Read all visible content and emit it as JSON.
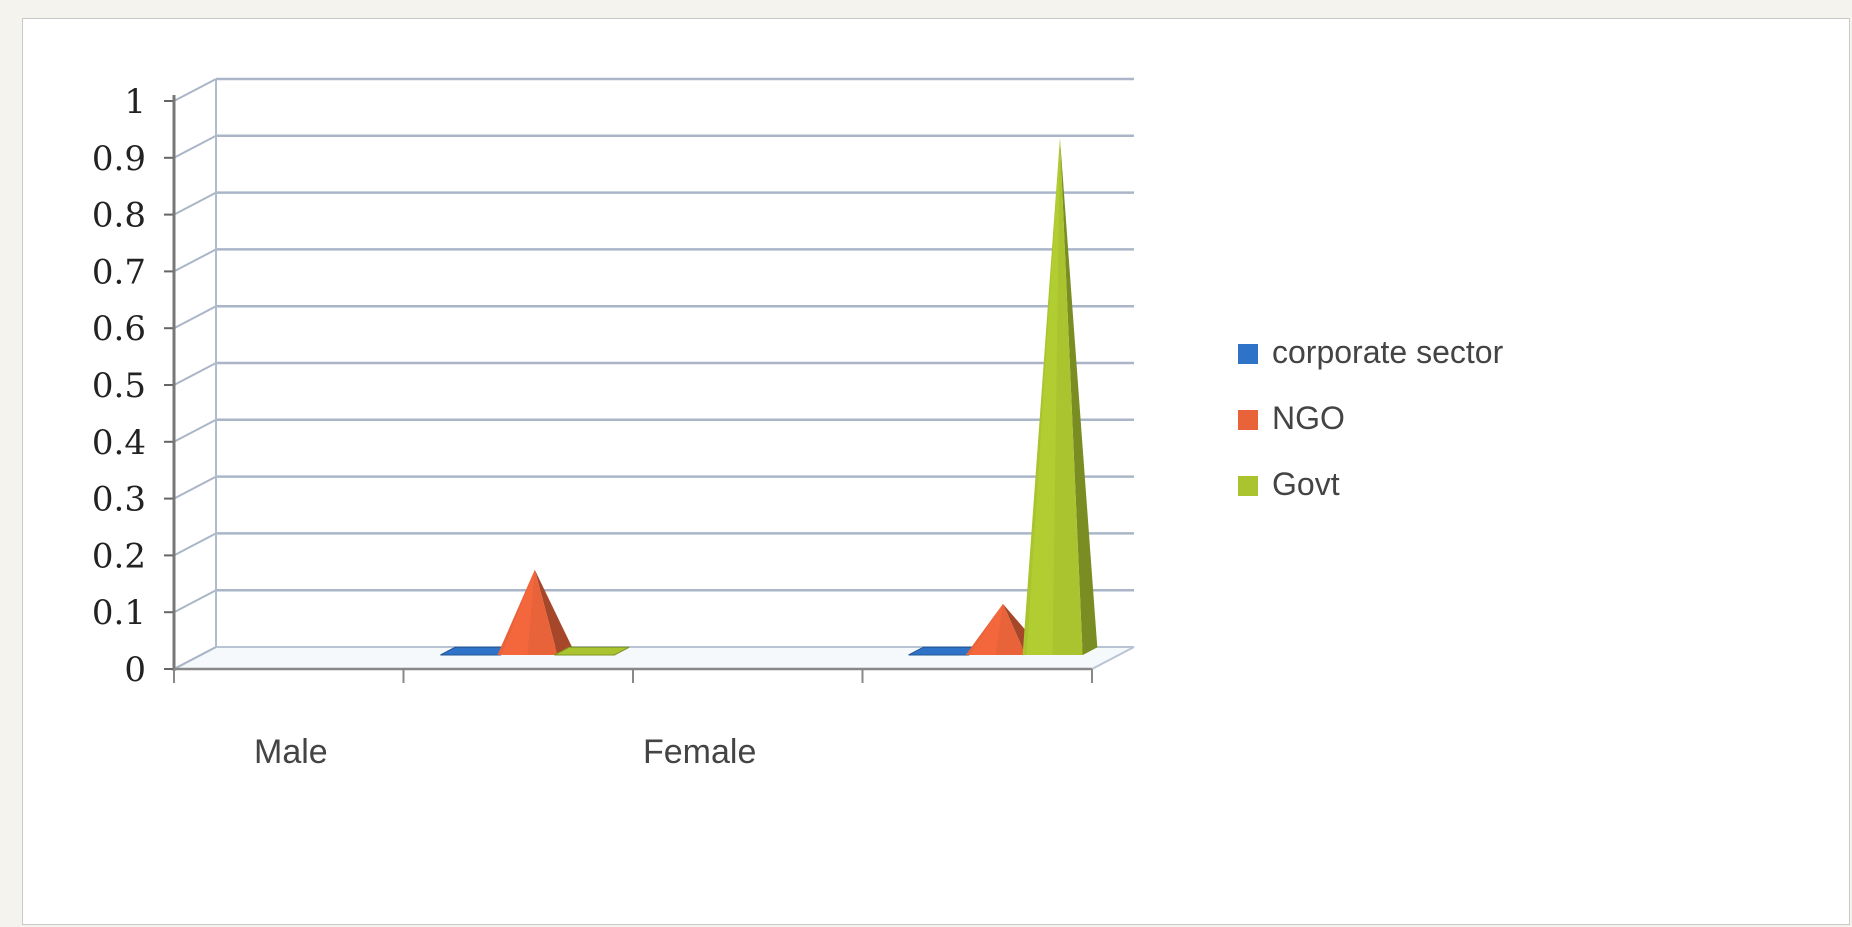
{
  "chart_data": {
    "type": "bar",
    "style": "3d-pyramid",
    "categories": [
      "Male",
      "Female"
    ],
    "series": [
      {
        "name": "corporate sector",
        "color": "#2f73c8",
        "values": [
          0.0,
          0.0
        ]
      },
      {
        "name": "NGO",
        "color": "#e8623a",
        "values": [
          0.15,
          0.09
        ]
      },
      {
        "name": "Govt",
        "color": "#a9c42f",
        "values": [
          0.0,
          0.91
        ]
      }
    ],
    "ylim": [
      0,
      1
    ],
    "yticks": [
      "0",
      "0.1",
      "0.2",
      "0.3",
      "0.4",
      "0.5",
      "0.6",
      "0.7",
      "0.8",
      "0.9",
      "1"
    ],
    "grid": true,
    "legend_position": "right"
  }
}
